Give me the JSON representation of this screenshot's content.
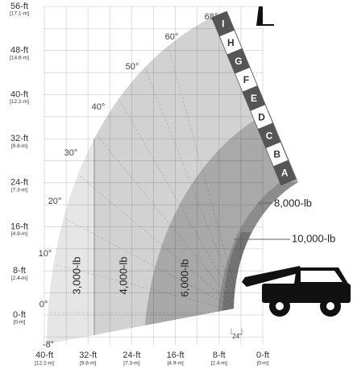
{
  "y_axis": [
    {
      "label": "56-ft",
      "metric": "[17.1-m]"
    },
    {
      "label": "48-ft",
      "metric": "[14.6-m]"
    },
    {
      "label": "40-ft",
      "metric": "[12.2-m]"
    },
    {
      "label": "32-ft",
      "metric": "[9.8-m]"
    },
    {
      "label": "24-ft",
      "metric": "[7.3-m]"
    },
    {
      "label": "16-ft",
      "metric": "[4.9-m]"
    },
    {
      "label": "8-ft",
      "metric": "[2.4-m]"
    },
    {
      "label": "0-ft",
      "metric": "[0-m]"
    }
  ],
  "x_axis": [
    {
      "label": "40-ft",
      "metric": "[12.2-m]"
    },
    {
      "label": "32-ft",
      "metric": "[9.8-m]"
    },
    {
      "label": "24-ft",
      "metric": "[7.3-m]"
    },
    {
      "label": "16-ft",
      "metric": "[4.9-m]"
    },
    {
      "label": "8-ft",
      "metric": "[2.4-m]"
    },
    {
      "label": "0-ft",
      "metric": "[0-m]"
    }
  ],
  "angles": [
    "68°",
    "60°",
    "50°",
    "40°",
    "30°",
    "20°",
    "10°",
    "0°",
    "-8°"
  ],
  "sections": [
    "I",
    "H",
    "G",
    "F",
    "E",
    "D",
    "C",
    "B",
    "A"
  ],
  "zones": [
    "3,000-lb",
    "4,000-lb",
    "6,000-lb",
    "8,000-lb",
    "10,000-lb"
  ],
  "clearance": "24\""
}
